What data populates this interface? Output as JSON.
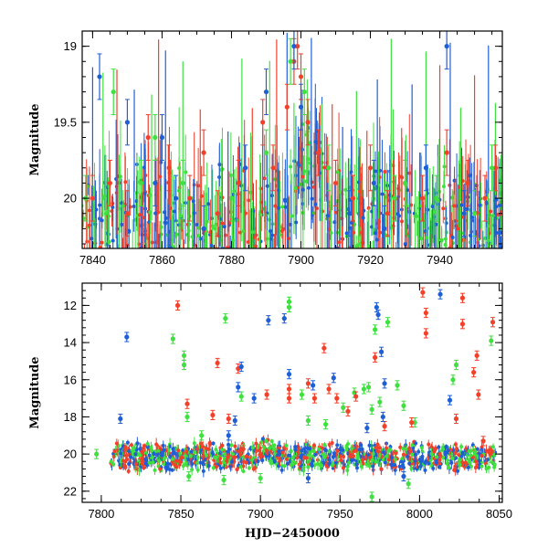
{
  "colors": {
    "blue": "#1f5fd6",
    "green": "#3fe03f",
    "red": "#f2402a",
    "black": "#000000"
  },
  "chart_data": [
    {
      "type": "scatter",
      "panel": "top",
      "xlabel": "",
      "ylabel": "Magnitude",
      "xlim": [
        7837,
        7958
      ],
      "ylim": [
        20.33,
        18.9
      ],
      "y_inverted": true,
      "xticks": [
        7840,
        7860,
        7880,
        7900,
        7920,
        7940
      ],
      "yticks": [
        19,
        19.5,
        20
      ],
      "ytick_labels": [
        "19",
        "19.5",
        "20"
      ],
      "series": [
        {
          "color": "red",
          "points": [
            [
              7840,
              20.0
            ],
            [
              7845,
              19.9
            ],
            [
              7850,
              20.1
            ],
            [
              7856,
              19.6
            ],
            [
              7862,
              19.8
            ],
            [
              7868,
              20.0
            ],
            [
              7872,
              19.7
            ],
            [
              7876,
              20.1
            ],
            [
              7882,
              19.9
            ],
            [
              7889,
              19.5
            ],
            [
              7892,
              19.8
            ],
            [
              7896,
              19.4
            ],
            [
              7898,
              19.1
            ],
            [
              7899,
              19.0
            ],
            [
              7900,
              19.2
            ],
            [
              7902,
              19.5
            ],
            [
              7905,
              19.7
            ],
            [
              7910,
              19.9
            ],
            [
              7915,
              20.0
            ],
            [
              7920,
              19.8
            ],
            [
              7925,
              20.1
            ],
            [
              7930,
              19.9
            ],
            [
              7935,
              20.0
            ],
            [
              7942,
              19.7
            ],
            [
              7948,
              19.9
            ],
            [
              7953,
              20.0
            ],
            [
              7956,
              19.8
            ]
          ]
        },
        {
          "color": "blue",
          "points": [
            [
              7842,
              19.2
            ],
            [
              7850,
              19.5
            ],
            [
              7858,
              19.9
            ],
            [
              7860,
              19.6
            ],
            [
              7864,
              20.0
            ],
            [
              7872,
              20.2
            ],
            [
              7884,
              19.8
            ],
            [
              7890,
              19.3
            ],
            [
              7898,
              19.0
            ],
            [
              7900,
              19.4
            ],
            [
              7914,
              20.1
            ],
            [
              7921,
              19.9
            ],
            [
              7924,
              20.2
            ],
            [
              7936,
              19.8
            ],
            [
              7942,
              19.0
            ],
            [
              7947,
              20.1
            ]
          ]
        },
        {
          "color": "green",
          "points": [
            [
              7838,
              20.0
            ],
            [
              7846,
              19.3
            ],
            [
              7854,
              19.9
            ],
            [
              7858,
              19.6
            ],
            [
              7866,
              19.9
            ],
            [
              7880,
              20.0
            ],
            [
              7890,
              19.7
            ],
            [
              7897,
              19.1
            ],
            [
              7901,
              19.3
            ],
            [
              7908,
              19.8
            ],
            [
              7927,
              20.0
            ],
            [
              7930,
              19.9
            ],
            [
              7939,
              20.0
            ],
            [
              7950,
              20.1
            ],
            [
              7955,
              19.8
            ]
          ]
        }
      ]
    },
    {
      "type": "scatter",
      "panel": "bottom",
      "xlabel": "HJD−2450000",
      "ylabel": "Magnitude",
      "xlim": [
        7788,
        8052
      ],
      "ylim": [
        22.6,
        10.8
      ],
      "y_inverted": true,
      "xticks": [
        7800,
        7850,
        7900,
        7950,
        8000,
        8050
      ],
      "yticks": [
        12,
        14,
        16,
        18,
        20,
        22
      ],
      "series": [
        {
          "color": "green",
          "points": [
            [
              7797,
              20.0
            ],
            [
              7845,
              13.8
            ],
            [
              7852,
              14.7
            ],
            [
              7852,
              15.2
            ],
            [
              7854,
              18.0
            ],
            [
              7863,
              19.0
            ],
            [
              7878,
              12.7
            ],
            [
              7888,
              16.9
            ],
            [
              7918,
              12.1
            ],
            [
              7918,
              11.8
            ],
            [
              7926,
              16.8
            ],
            [
              7930,
              18.2
            ],
            [
              7941,
              18.4
            ],
            [
              7952,
              17.5
            ],
            [
              7959,
              16.7
            ],
            [
              7965,
              16.5
            ],
            [
              7968,
              16.4
            ],
            [
              7970,
              17.6
            ],
            [
              7972,
              13.3
            ],
            [
              7975,
              17.2
            ],
            [
              7980,
              12.9
            ],
            [
              7986,
              16.3
            ],
            [
              7990,
              17.4
            ],
            [
              7997,
              18.3
            ],
            [
              8021,
              16.0
            ],
            [
              8023,
              15.2
            ],
            [
              8045,
              13.9
            ],
            [
              7855,
              21.2
            ],
            [
              7877,
              21.4
            ],
            [
              7900,
              21.3
            ],
            [
              7970,
              22.3
            ],
            [
              7993,
              21.6
            ]
          ]
        },
        {
          "color": "red",
          "points": [
            [
              7848,
              12.0
            ],
            [
              7854,
              17.3
            ],
            [
              7870,
              17.9
            ],
            [
              7873,
              15.1
            ],
            [
              7880,
              18.1
            ],
            [
              7886,
              15.4
            ],
            [
              7904,
              16.8
            ],
            [
              7918,
              16.5
            ],
            [
              7918,
              17.0
            ],
            [
              7930,
              16.2
            ],
            [
              7934,
              17.0
            ],
            [
              7940,
              14.3
            ],
            [
              7943,
              16.5
            ],
            [
              7948,
              17.0
            ],
            [
              7955,
              17.7
            ],
            [
              7960,
              16.9
            ],
            [
              7972,
              14.8
            ],
            [
              7978,
              18.5
            ],
            [
              7995,
              18.3
            ],
            [
              8002,
              11.3
            ],
            [
              8004,
              12.4
            ],
            [
              8004,
              13.5
            ],
            [
              8023,
              18.1
            ],
            [
              8027,
              11.6
            ],
            [
              8027,
              13.0
            ],
            [
              8034,
              15.6
            ],
            [
              8036,
              14.7
            ],
            [
              8037,
              16.8
            ],
            [
              8040,
              19.3
            ],
            [
              8046,
              12.9
            ]
          ]
        },
        {
          "color": "blue",
          "points": [
            [
              7812,
              18.1
            ],
            [
              7816,
              13.7
            ],
            [
              7880,
              19.0
            ],
            [
              7884,
              18.2
            ],
            [
              7886,
              16.4
            ],
            [
              7888,
              15.3
            ],
            [
              7896,
              17.0
            ],
            [
              7905,
              12.8
            ],
            [
              7915,
              12.7
            ],
            [
              7918,
              15.7
            ],
            [
              7933,
              16.3
            ],
            [
              7946,
              15.9
            ],
            [
              7967,
              18.6
            ],
            [
              7973,
              12.1
            ],
            [
              7974,
              12.5
            ],
            [
              7976,
              14.5
            ],
            [
              7977,
              18.0
            ],
            [
              7978,
              16.2
            ],
            [
              8013,
              11.4
            ],
            [
              8019,
              17.1
            ],
            [
              7930,
              21.3
            ],
            [
              7990,
              21.2
            ]
          ]
        }
      ]
    }
  ],
  "band": {
    "x_start": 7806,
    "x_end": 8048,
    "mean_mag": 20.15,
    "bulge": {
      "x_center": 7902,
      "dip": 0.45
    }
  }
}
